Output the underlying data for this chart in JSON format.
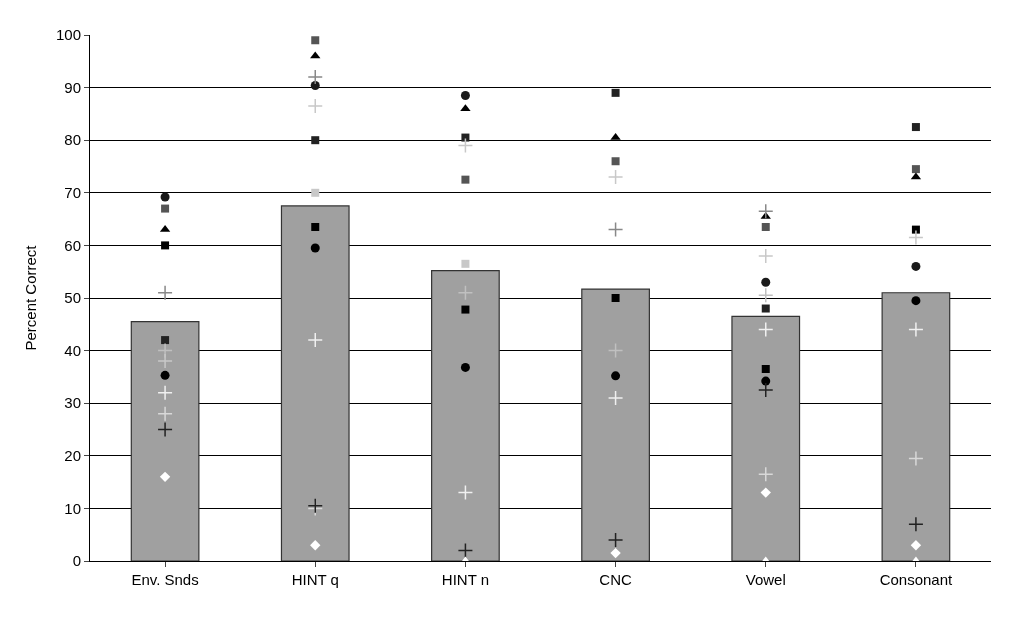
{
  "chart_data": {
    "type": "bar",
    "ylabel": "Percent Correct",
    "categories": [
      "Env. Snds",
      "HINT q",
      "HINT n",
      "CNC",
      "Vowel",
      "Consonant"
    ],
    "ylim": [
      0,
      100
    ],
    "yticks": [
      0,
      10,
      20,
      30,
      40,
      50,
      60,
      70,
      80,
      90,
      100
    ],
    "grid": "y",
    "series": [
      {
        "color": "#a0a0a0",
        "values": [
          45.5,
          67.5,
          55.2,
          51.7,
          46.5,
          51
        ]
      },
      {
        "type": "scatter",
        "marker": "circle",
        "color": "#1a1a1a",
        "values": [
          69.2,
          90.4,
          88.5,
          null,
          53,
          56
        ]
      },
      {
        "type": "scatter",
        "marker": "square",
        "color": "#555555",
        "values": [
          67,
          99,
          72.5,
          76,
          63.5,
          74.5
        ]
      },
      {
        "type": "scatter",
        "marker": "triangle",
        "color": "#000000",
        "values": [
          63,
          96,
          86,
          80.5,
          65.5,
          73
        ]
      },
      {
        "type": "scatter",
        "marker": "square",
        "color": "#000000",
        "values": [
          60,
          63.5,
          47.8,
          50,
          36.5,
          63
        ]
      },
      {
        "type": "scatter",
        "marker": "cross",
        "color": "#888888",
        "values": [
          51,
          92,
          null,
          63,
          66.5,
          null
        ]
      },
      {
        "type": "scatter",
        "marker": "square",
        "color": "#222222",
        "values": [
          42,
          80,
          80.5,
          89,
          48,
          82.5
        ]
      },
      {
        "type": "scatter",
        "marker": "square",
        "color": "#c8c8c8",
        "values": [
          null,
          70,
          56.5,
          null,
          null,
          null
        ]
      },
      {
        "type": "scatter",
        "marker": "cross",
        "color": "#c0c0c0",
        "values": [
          40,
          null,
          51,
          40,
          50.5,
          null
        ]
      },
      {
        "type": "scatter",
        "marker": "cross",
        "color": "#c8c8c8",
        "values": [
          38,
          86.5,
          79,
          73,
          58,
          61.5
        ]
      },
      {
        "type": "scatter",
        "marker": "circle",
        "color": "#000000",
        "values": [
          35.3,
          59.5,
          36.8,
          35.2,
          34.2,
          49.5
        ]
      },
      {
        "type": "scatter",
        "marker": "cross",
        "color": "#f0f0f0",
        "values": [
          32,
          42,
          13,
          31,
          44,
          44
        ]
      },
      {
        "type": "scatter",
        "marker": "cross",
        "color": "#d8d8d8",
        "values": [
          28,
          10,
          null,
          null,
          16.5,
          19.5
        ]
      },
      {
        "type": "scatter",
        "marker": "cross",
        "color": "#222222",
        "values": [
          25,
          10.5,
          2,
          4,
          32.5,
          7
        ]
      },
      {
        "type": "scatter",
        "marker": "diamond",
        "color": "#ffffff",
        "values": [
          16,
          3,
          null,
          1.5,
          13,
          3
        ]
      },
      {
        "type": "scatter",
        "marker": "triangle",
        "color": "#ffffff",
        "values": [
          null,
          null,
          0,
          null,
          0,
          0
        ]
      }
    ]
  }
}
